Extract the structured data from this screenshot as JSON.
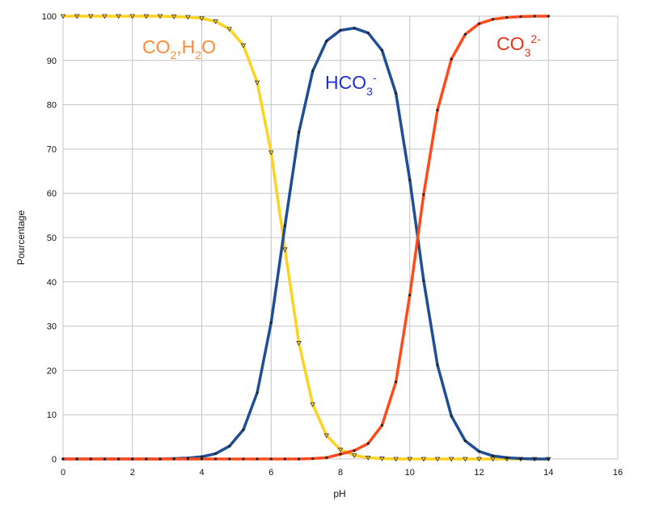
{
  "chart_data": {
    "type": "line",
    "xlabel": "pH",
    "ylabel": "Pourcentage",
    "xlim": [
      0,
      16
    ],
    "ylim": [
      0,
      100
    ],
    "xticks": [
      "0",
      "2",
      "4",
      "6",
      "8",
      "10",
      "12",
      "14",
      "16"
    ],
    "yticks": [
      "0",
      "10",
      "20",
      "30",
      "40",
      "50",
      "60",
      "70",
      "80",
      "90",
      "100"
    ],
    "grid": true,
    "x": [
      0,
      0.4,
      0.8,
      1.2,
      1.6,
      2.0,
      2.4,
      2.8,
      3.2,
      3.6,
      4.0,
      4.4,
      4.8,
      5.2,
      5.6,
      6.0,
      6.4,
      6.8,
      7.2,
      7.6,
      8.0,
      8.4,
      8.8,
      9.2,
      9.6,
      10.0,
      10.4,
      10.8,
      11.2,
      11.6,
      12.0,
      12.4,
      12.8,
      13.2,
      13.6,
      14.0
    ],
    "series": [
      {
        "name_parts": [
          "CO",
          "2",
          ",H",
          "2",
          "O"
        ],
        "color": "#ffd21f",
        "marker": "triangle-down",
        "values": [
          100,
          100,
          100,
          100,
          100,
          100,
          100,
          100,
          99.9,
          99.8,
          99.5,
          98.8,
          97.1,
          93.4,
          85.0,
          69.2,
          47.3,
          26.2,
          12.3,
          5.3,
          2.1,
          0.8,
          0.3,
          0.1,
          0,
          0,
          0,
          0,
          0,
          0,
          0,
          0,
          0,
          0,
          0,
          0
        ]
      },
      {
        "name_parts": [
          "HCO",
          "3",
          "-"
        ],
        "color": "#1f4e96",
        "marker": "circle",
        "values": [
          0,
          0,
          0,
          0,
          0,
          0,
          0,
          0,
          0.1,
          0.2,
          0.5,
          1.2,
          2.9,
          6.6,
          15.0,
          30.8,
          52.7,
          73.8,
          87.6,
          94.4,
          96.8,
          97.3,
          96.2,
          92.3,
          82.6,
          63.0,
          40.3,
          21.2,
          9.7,
          4.1,
          1.7,
          0.7,
          0.3,
          0.1,
          0,
          0
        ]
      },
      {
        "name_parts": [
          "CO",
          "3",
          "2-"
        ],
        "color": "#ff4a1a",
        "marker": "circle",
        "values": [
          0,
          0,
          0,
          0,
          0,
          0,
          0,
          0,
          0,
          0,
          0,
          0,
          0,
          0,
          0,
          0,
          0,
          0,
          0.1,
          0.3,
          1.1,
          1.9,
          3.5,
          7.6,
          17.4,
          37.0,
          59.7,
          78.8,
          90.3,
          95.9,
          98.3,
          99.3,
          99.7,
          99.9,
          100,
          100
        ]
      }
    ]
  }
}
